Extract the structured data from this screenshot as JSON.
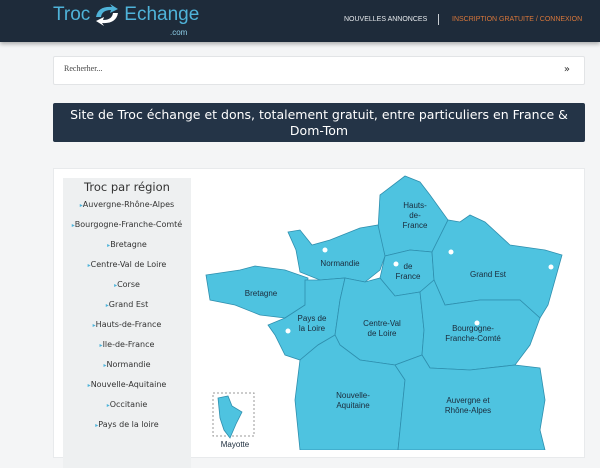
{
  "header": {
    "logo_text": "TrocEchange.com",
    "logo_left": "Troc",
    "logo_right": "Echange",
    "logo_suffix": ".com",
    "nav_new": "NOUVELLES ANNONCES",
    "nav_signup": "INSCRIPTION GRATUITE / CONNEXION"
  },
  "search": {
    "placeholder": "Recherher...",
    "toggle_icon": "double-chevron-down-icon"
  },
  "banner": {
    "text": "Site de Troc échange et dons, totalement gratuit, entre particuliers en France & Dom-Tom"
  },
  "sidebar": {
    "title": "Troc par région",
    "items": [
      {
        "label": "Auvergne-Rhône-Alpes"
      },
      {
        "label": "Bourgogne-Franche-Comté"
      },
      {
        "label": "Bretagne"
      },
      {
        "label": "Centre-Val de Loire"
      },
      {
        "label": "Corse"
      },
      {
        "label": "Grand Est"
      },
      {
        "label": "Hauts-de-France"
      },
      {
        "label": "Ile-de-France"
      },
      {
        "label": "Normandie"
      },
      {
        "label": "Nouvelle-Aquitaine"
      },
      {
        "label": "Occitanie"
      },
      {
        "label": "Pays de la loire"
      }
    ]
  },
  "map": {
    "fill": "#4ec3e0",
    "stroke": "#2f8fae",
    "regions": {
      "hdf": [
        "Hauts-",
        "de-",
        "France"
      ],
      "nor": [
        "Normandie"
      ],
      "idf": [
        "de",
        "France"
      ],
      "ge": [
        "Grand Est"
      ],
      "bre": [
        "Bretagne"
      ],
      "pdl": [
        "Pays de",
        "la Loire"
      ],
      "cvl": [
        "Centre-Val",
        "de Loire"
      ],
      "bfc": [
        "Bourgogne-",
        "Franche-Comté"
      ],
      "naq": [
        "Nouvelle-",
        "Aquitaine"
      ],
      "ara": [
        "Auvergne et",
        "Rhône-Alpes"
      ],
      "may": [
        "Mayotte"
      ]
    }
  }
}
